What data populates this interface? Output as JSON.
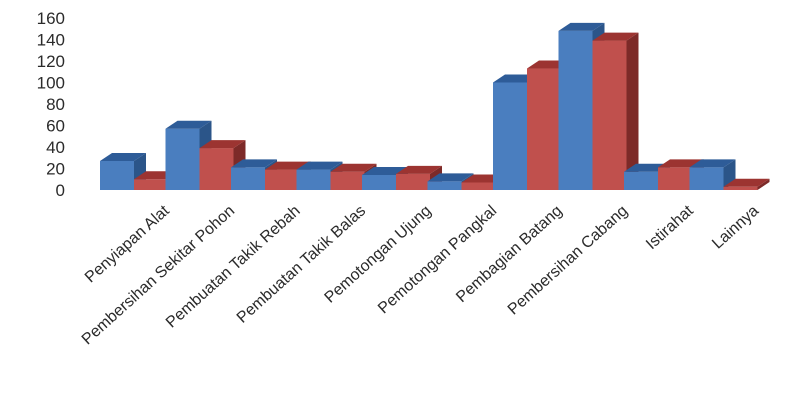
{
  "chart_data": {
    "type": "bar",
    "style": "3d-clustered-column",
    "categories": [
      "Penyiapan Alat",
      "Pembersihan Sekitar Pohon",
      "Pembuatan Takik Rebah",
      "Pembuatan Takik Balas",
      "Pemotongan Ujung",
      "Pemotongan Pangkal",
      "Pembagian Batang",
      "Pembersihan Cabang",
      "Istirahat",
      "Lainnya"
    ],
    "series": [
      {
        "values": [
          27,
          57,
          21,
          19,
          14,
          8,
          100,
          148,
          17,
          21
        ]
      },
      {
        "values": [
          10,
          39,
          19,
          17,
          15,
          7,
          113,
          139,
          21,
          3
        ]
      }
    ],
    "y_ticks": [
      0,
      20,
      40,
      60,
      80,
      100,
      120,
      140,
      160
    ],
    "ylim": [
      0,
      160
    ],
    "grid": false,
    "legend": "none",
    "colors": {
      "series_1": "#4a7ebf",
      "series_1_top": "#2e5c98",
      "series_1_side": "#2b5589",
      "series_2": "#c0504d",
      "series_2_top": "#9c3431",
      "series_2_side": "#7d2a28"
    }
  }
}
